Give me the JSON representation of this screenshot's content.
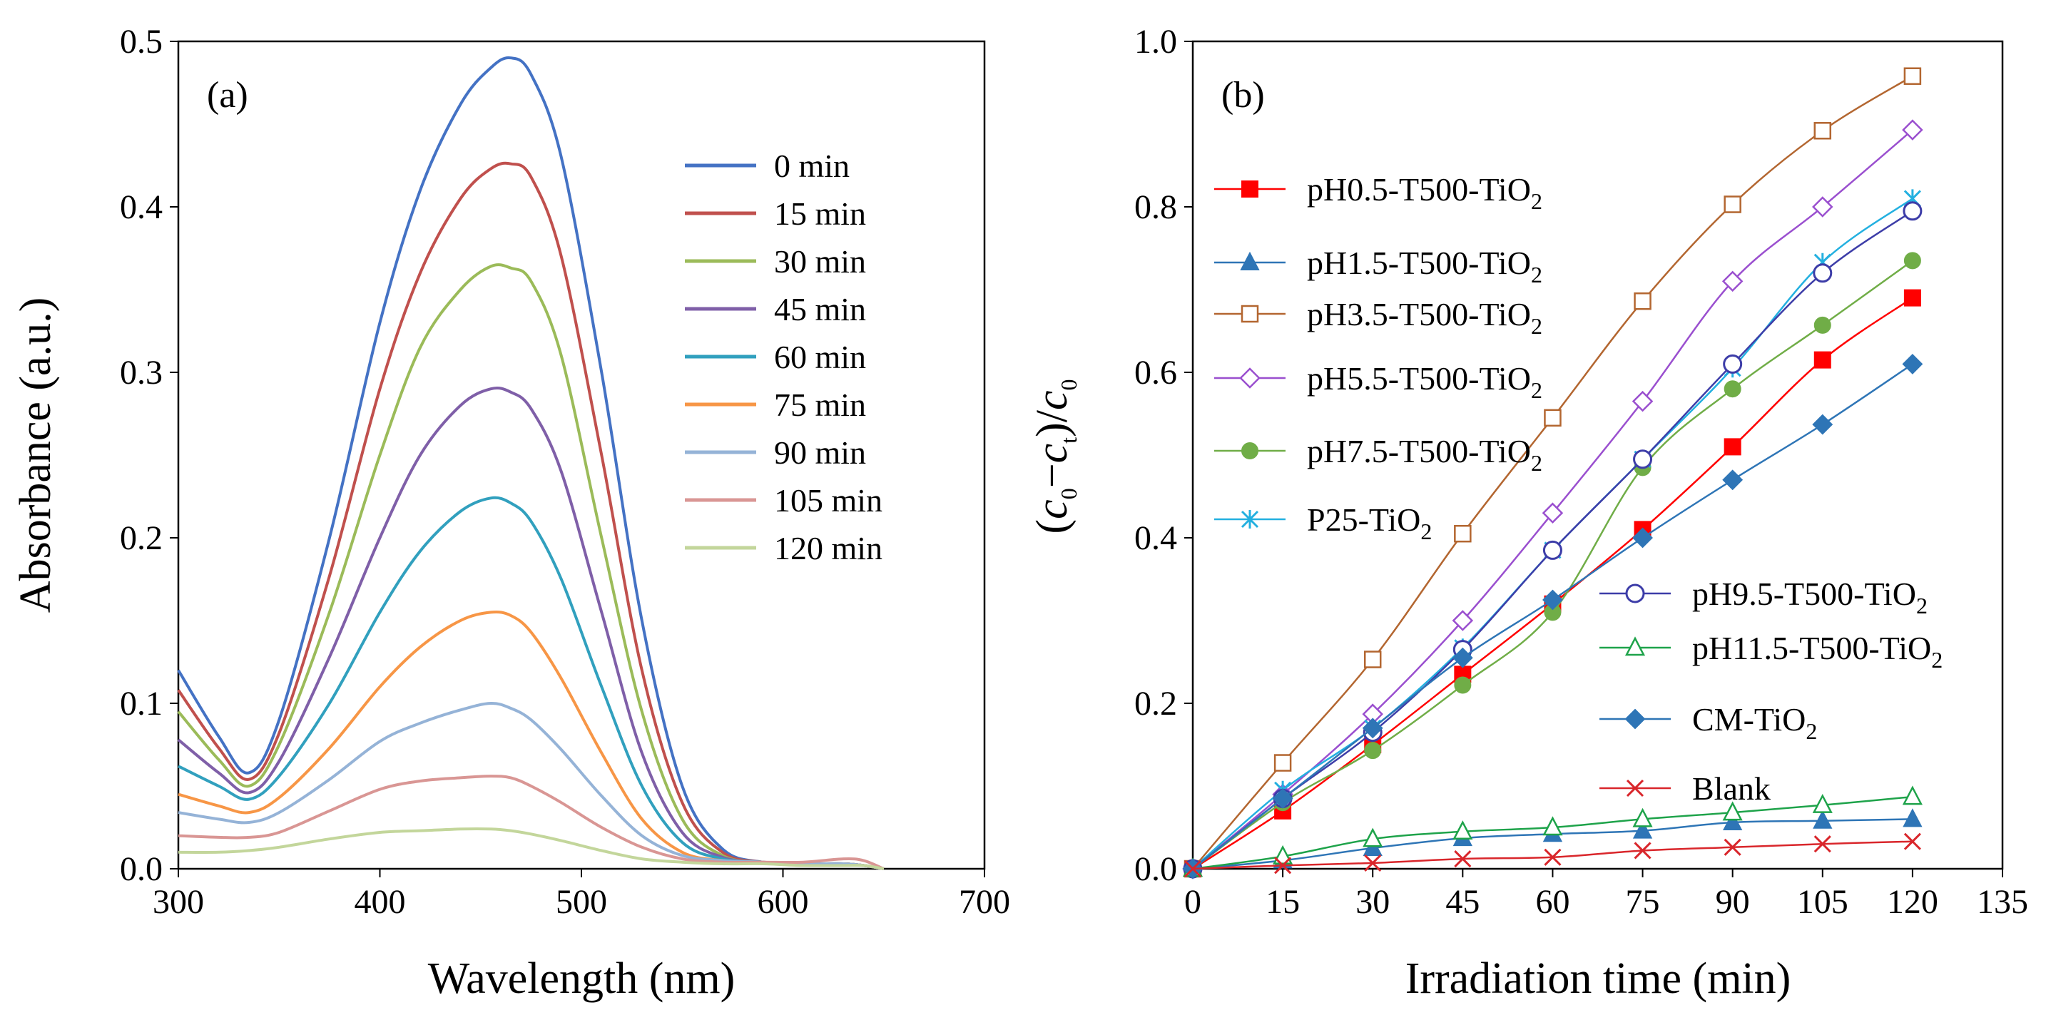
{
  "chart_data": [
    {
      "panel": "a",
      "type": "line",
      "panel_label": "(a)",
      "xlabel": "Wavelength (nm)",
      "ylabel": "Absorbance (a.u.)",
      "xlim": [
        300,
        700
      ],
      "ylim": [
        0,
        0.5
      ],
      "xticks": [
        300,
        400,
        500,
        600,
        700
      ],
      "yticks": [
        0.0,
        0.1,
        0.2,
        0.3,
        0.4,
        0.5
      ],
      "xtick_labels": [
        "300",
        "400",
        "500",
        "600",
        "700"
      ],
      "ytick_labels": [
        "0.0",
        "0.1",
        "0.2",
        "0.3",
        "0.4",
        "0.5"
      ],
      "legend_position": "top-right",
      "x": [
        300,
        320,
        335,
        350,
        375,
        400,
        420,
        440,
        455,
        465,
        475,
        490,
        510,
        530,
        550,
        570,
        590,
        610,
        630,
        640,
        650
      ],
      "series": [
        {
          "name": "0 min",
          "color": "#4472c4",
          "values": [
            0.12,
            0.08,
            0.058,
            0.09,
            0.2,
            0.33,
            0.41,
            0.462,
            0.484,
            0.49,
            0.48,
            0.43,
            0.3,
            0.15,
            0.05,
            0.012,
            0.004,
            0.003,
            0.003,
            0.002,
            0.0
          ]
        },
        {
          "name": "15 min",
          "color": "#c0504d",
          "values": [
            0.108,
            0.073,
            0.054,
            0.082,
            0.177,
            0.29,
            0.36,
            0.405,
            0.423,
            0.426,
            0.418,
            0.37,
            0.25,
            0.12,
            0.04,
            0.01,
            0.004,
            0.003,
            0.003,
            0.002,
            0.0
          ]
        },
        {
          "name": "30 min",
          "color": "#9bbb59",
          "values": [
            0.095,
            0.066,
            0.05,
            0.075,
            0.155,
            0.25,
            0.315,
            0.35,
            0.364,
            0.363,
            0.355,
            0.31,
            0.2,
            0.095,
            0.03,
            0.008,
            0.004,
            0.003,
            0.003,
            0.002,
            0.0
          ]
        },
        {
          "name": "45 min",
          "color": "#7f5fa8",
          "values": [
            0.078,
            0.058,
            0.046,
            0.065,
            0.128,
            0.2,
            0.25,
            0.28,
            0.29,
            0.288,
            0.278,
            0.24,
            0.155,
            0.07,
            0.022,
            0.007,
            0.004,
            0.003,
            0.003,
            0.002,
            0.0
          ]
        },
        {
          "name": "60 min",
          "color": "#31a0be",
          "values": [
            0.062,
            0.05,
            0.042,
            0.056,
            0.1,
            0.155,
            0.192,
            0.216,
            0.224,
            0.221,
            0.21,
            0.175,
            0.11,
            0.05,
            0.016,
            0.006,
            0.004,
            0.003,
            0.003,
            0.002,
            0.0
          ]
        },
        {
          "name": "75 min",
          "color": "#f79646",
          "values": [
            0.045,
            0.038,
            0.034,
            0.043,
            0.073,
            0.11,
            0.134,
            0.15,
            0.155,
            0.153,
            0.143,
            0.115,
            0.07,
            0.03,
            0.01,
            0.005,
            0.004,
            0.003,
            0.003,
            0.002,
            0.0
          ]
        },
        {
          "name": "90 min",
          "color": "#95b3d7",
          "values": [
            0.034,
            0.03,
            0.028,
            0.034,
            0.054,
            0.077,
            0.088,
            0.096,
            0.1,
            0.097,
            0.09,
            0.072,
            0.044,
            0.02,
            0.008,
            0.005,
            0.004,
            0.003,
            0.003,
            0.002,
            0.0
          ]
        },
        {
          "name": "105 min",
          "color": "#d99694",
          "values": [
            0.02,
            0.019,
            0.019,
            0.022,
            0.035,
            0.048,
            0.053,
            0.055,
            0.056,
            0.055,
            0.05,
            0.04,
            0.025,
            0.013,
            0.006,
            0.004,
            0.004,
            0.004,
            0.006,
            0.005,
            0.0
          ]
        },
        {
          "name": "120 min",
          "color": "#c3d69b",
          "values": [
            0.01,
            0.01,
            0.011,
            0.013,
            0.018,
            0.022,
            0.023,
            0.024,
            0.024,
            0.023,
            0.021,
            0.017,
            0.011,
            0.006,
            0.004,
            0.003,
            0.003,
            0.002,
            0.002,
            0.002,
            0.0
          ]
        }
      ]
    },
    {
      "panel": "b",
      "type": "line",
      "panel_label": "(b)",
      "xlabel": "Irradiation time (min)",
      "ylabel_parts": {
        "open": "(",
        "c": "c",
        "zero": "0",
        "minus": "−",
        "t": "t",
        "close": ")/"
      },
      "xlim": [
        0,
        135
      ],
      "ylim": [
        0,
        1.0
      ],
      "xticks": [
        0,
        15,
        30,
        45,
        60,
        75,
        90,
        105,
        120,
        135
      ],
      "yticks": [
        0.0,
        0.2,
        0.4,
        0.6,
        0.8,
        1.0
      ],
      "xtick_labels": [
        "0",
        "15",
        "30",
        "45",
        "60",
        "75",
        "90",
        "105",
        "120",
        "135"
      ],
      "ytick_labels": [
        "0.0",
        "0.2",
        "0.4",
        "0.6",
        "0.8",
        "1.0"
      ],
      "legend_position": "left and right inside plot",
      "x": [
        0,
        15,
        30,
        45,
        60,
        75,
        90,
        105,
        120
      ],
      "series": [
        {
          "name": "pH0.5-T500-TiO",
          "subscript": "2",
          "color": "#ff0000",
          "marker": "square-filled",
          "values": [
            0,
            0.07,
            0.15,
            0.235,
            0.32,
            0.41,
            0.51,
            0.615,
            0.69
          ]
        },
        {
          "name": "pH1.5-T500-TiO",
          "subscript": "2",
          "color": "#2e75b6",
          "marker": "triangle-filled",
          "values": [
            0,
            0.01,
            0.025,
            0.037,
            0.042,
            0.046,
            0.056,
            0.058,
            0.06
          ]
        },
        {
          "name": "pH3.5-T500-TiO",
          "subscript": "2",
          "color": "#b36630",
          "marker": "square-open",
          "values": [
            0,
            0.128,
            0.253,
            0.405,
            0.545,
            0.686,
            0.803,
            0.892,
            0.958
          ]
        },
        {
          "name": "pH5.5-T500-TiO",
          "subscript": "2",
          "color": "#9a4fcf",
          "marker": "diamond-open",
          "values": [
            0,
            0.09,
            0.187,
            0.3,
            0.43,
            0.565,
            0.71,
            0.8,
            0.893
          ]
        },
        {
          "name": "pH7.5-T500-TiO",
          "subscript": "2",
          "color": "#70ad47",
          "marker": "circle-filled",
          "values": [
            0,
            0.08,
            0.143,
            0.222,
            0.31,
            0.485,
            0.58,
            0.657,
            0.735
          ]
        },
        {
          "name": "P25-TiO",
          "subscript": "2",
          "color": "#23b0e0",
          "marker": "star",
          "values": [
            0,
            0.095,
            0.17,
            0.267,
            0.385,
            0.495,
            0.605,
            0.733,
            0.81
          ]
        },
        {
          "name": "pH9.5-T500-TiO",
          "subscript": "2",
          "color": "#3d3da8",
          "marker": "circle-open",
          "values": [
            0,
            0.085,
            0.165,
            0.265,
            0.385,
            0.495,
            0.61,
            0.72,
            0.795
          ]
        },
        {
          "name": "pH11.5-T500-TiO",
          "subscript": "2",
          "color": "#1ea34a",
          "marker": "triangle-open",
          "values": [
            0,
            0.015,
            0.036,
            0.045,
            0.05,
            0.06,
            0.068,
            0.077,
            0.087
          ]
        },
        {
          "name": "CM-TiO",
          "subscript": "2",
          "color": "#2e75b6",
          "marker": "diamond-filled",
          "values": [
            0,
            0.085,
            0.17,
            0.255,
            0.325,
            0.4,
            0.47,
            0.537,
            0.61
          ]
        },
        {
          "name": "Blank",
          "subscript": "",
          "color": "#d9262b",
          "marker": "x",
          "values": [
            0,
            0.004,
            0.007,
            0.012,
            0.014,
            0.022,
            0.026,
            0.03,
            0.033
          ]
        }
      ]
    }
  ]
}
